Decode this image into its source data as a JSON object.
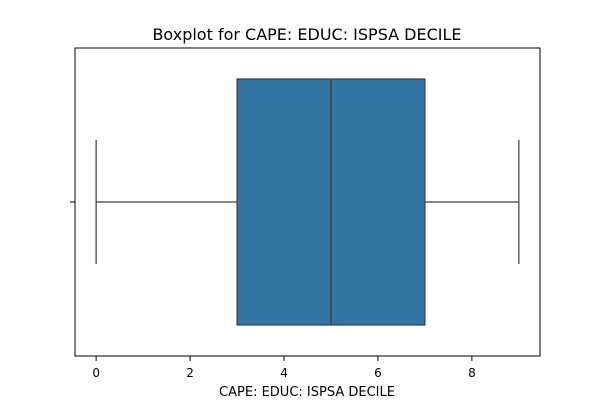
{
  "chart_data": {
    "type": "box",
    "title": "Boxplot for CAPE: EDUC: ISPSA DECILE",
    "xlabel": "CAPE: EDUC: ISPSA DECILE",
    "ylabel": "",
    "xlim": [
      -0.45,
      9.45
    ],
    "x_ticks": [
      0,
      2,
      4,
      6,
      8
    ],
    "grid": false,
    "box": {
      "min": 0,
      "q1": 3,
      "median": 5,
      "q3": 7,
      "max": 9
    },
    "colors": {
      "box_fill": "#3274a1",
      "line": "#3d3d3d",
      "axes": "#000000"
    }
  }
}
